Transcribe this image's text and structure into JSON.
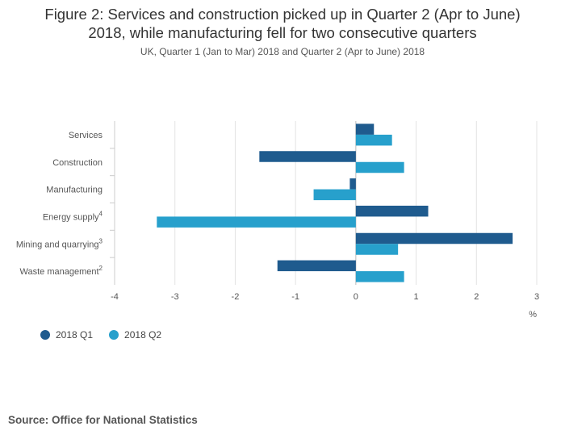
{
  "header": {
    "title_line1": "Figure 2: Services and construction picked up in Quarter 2 (Apr to June)",
    "title_line2": "2018, while manufacturing fell for two consecutive quarters",
    "subtitle": "UK, Quarter 1 (Jan to Mar) 2018 and Quarter 2 (Apr to June) 2018"
  },
  "chart_data": {
    "type": "bar",
    "orientation": "horizontal",
    "categories": [
      {
        "label": "Services",
        "sup": ""
      },
      {
        "label": "Construction",
        "sup": ""
      },
      {
        "label": "Manufacturing",
        "sup": ""
      },
      {
        "label": "Energy supply",
        "sup": "4"
      },
      {
        "label": "Mining and quarrying",
        "sup": "3"
      },
      {
        "label": "Waste management",
        "sup": "2"
      }
    ],
    "series": [
      {
        "name": "2018 Q1",
        "color": "#1f5b8e",
        "values": [
          0.3,
          -1.6,
          -0.1,
          1.2,
          2.6,
          -1.3
        ]
      },
      {
        "name": "2018 Q2",
        "color": "#27a0cc",
        "values": [
          0.6,
          0.8,
          -0.7,
          -3.3,
          0.7,
          0.8
        ]
      }
    ],
    "xlim": [
      -4,
      3
    ],
    "xticks": [
      "-4",
      "-3",
      "-2",
      "-1",
      "0",
      "1",
      "2",
      "3"
    ],
    "xlabel": "%",
    "grid": true,
    "legend_position": "bottom-left"
  },
  "footer": {
    "source": "Source: Office for National Statistics"
  }
}
